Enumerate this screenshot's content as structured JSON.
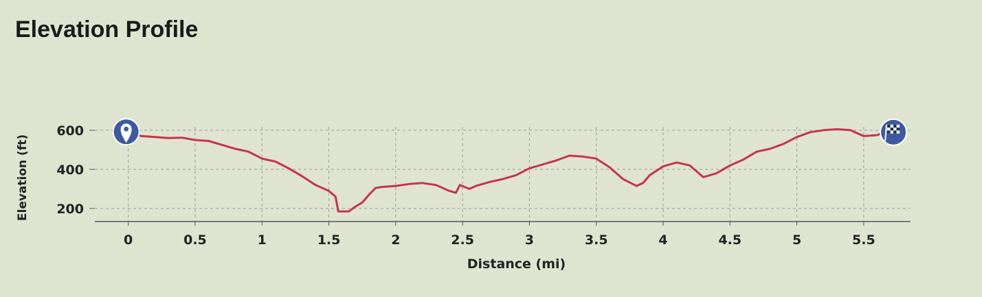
{
  "chart_data": {
    "type": "line",
    "title": "Elevation Profile",
    "x_label": "Distance (mi)",
    "y_label": "Elevation (ft)",
    "x": [
      0,
      0.1,
      0.2,
      0.3,
      0.4,
      0.5,
      0.6,
      0.7,
      0.8,
      0.9,
      1.0,
      1.1,
      1.2,
      1.3,
      1.4,
      1.5,
      1.55,
      1.57,
      1.65,
      1.7,
      1.75,
      1.8,
      1.85,
      1.9,
      2.0,
      2.1,
      2.2,
      2.3,
      2.4,
      2.45,
      2.48,
      2.55,
      2.6,
      2.7,
      2.8,
      2.9,
      3.0,
      3.1,
      3.2,
      3.3,
      3.4,
      3.5,
      3.6,
      3.7,
      3.8,
      3.85,
      3.9,
      4.0,
      4.1,
      4.2,
      4.3,
      4.4,
      4.5,
      4.6,
      4.7,
      4.8,
      4.9,
      5.0,
      5.1,
      5.2,
      5.3,
      5.4,
      5.5,
      5.6,
      5.65
    ],
    "series": [
      {
        "name": "Elevation",
        "color": "#c8324c",
        "values": [
          585,
          570,
          565,
          560,
          562,
          550,
          545,
          525,
          505,
          490,
          455,
          440,
          405,
          365,
          320,
          290,
          260,
          185,
          185,
          210,
          230,
          270,
          305,
          310,
          315,
          325,
          330,
          320,
          290,
          280,
          320,
          300,
          315,
          335,
          350,
          370,
          405,
          425,
          445,
          470,
          465,
          455,
          410,
          350,
          315,
          330,
          370,
          415,
          435,
          420,
          360,
          380,
          420,
          450,
          490,
          505,
          530,
          565,
          590,
          600,
          605,
          600,
          570,
          575,
          590
        ]
      }
    ],
    "xlim": [
      -0.25,
      5.85
    ],
    "ylim": [
      133,
      617
    ],
    "xticks": [
      0,
      0.5,
      1,
      1.5,
      2,
      2.5,
      3,
      3.5,
      4,
      4.5,
      5,
      5.5
    ],
    "yticks": [
      200,
      400,
      600
    ],
    "grid": true
  }
}
